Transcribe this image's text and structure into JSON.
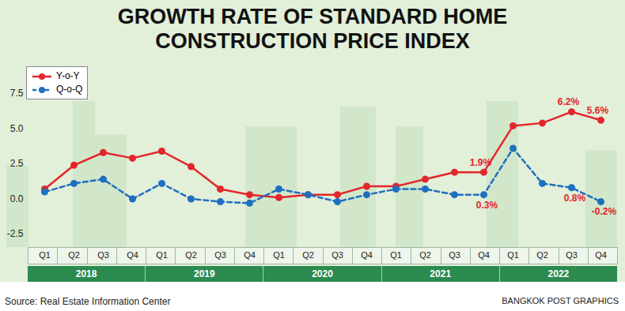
{
  "chart_data": {
    "type": "line",
    "title": "GROWTH RATE OF STANDARD HOME CONSTRUCTION PRICE INDEX",
    "source": "Source: Real Estate Information Center",
    "credit": "BANGKOK POST GRAPHICS",
    "categories": [
      "Q1",
      "Q2",
      "Q3",
      "Q4",
      "Q1",
      "Q2",
      "Q3",
      "Q4",
      "Q1",
      "Q2",
      "Q3",
      "Q4",
      "Q1",
      "Q2",
      "Q3",
      "Q4",
      "Q1",
      "Q2",
      "Q3",
      "Q4"
    ],
    "years": [
      "2018",
      "2019",
      "2020",
      "2021",
      "2022"
    ],
    "series": [
      {
        "name": "Y-o-Y",
        "color": "#e3262b",
        "marker": "circle",
        "line_style": "solid",
        "values": [
          0.7,
          2.4,
          3.3,
          2.9,
          3.4,
          2.3,
          0.7,
          0.3,
          0.1,
          0.3,
          0.3,
          0.9,
          0.9,
          1.4,
          1.9,
          1.9,
          5.2,
          5.4,
          6.2,
          5.6
        ],
        "value_labels": [
          null,
          null,
          null,
          null,
          null,
          null,
          null,
          null,
          null,
          null,
          null,
          null,
          null,
          null,
          null,
          "1.9%",
          null,
          null,
          "6.2%",
          "5.6%"
        ]
      },
      {
        "name": "Q-o-Q",
        "color": "#1f6fc0",
        "marker": "circle",
        "line_style": "dashed",
        "values": [
          0.5,
          1.1,
          1.4,
          0.0,
          1.1,
          0.0,
          -0.2,
          -0.3,
          0.7,
          0.3,
          -0.2,
          0.3,
          0.7,
          0.7,
          0.3,
          0.3,
          3.6,
          1.1,
          0.8,
          -0.2
        ],
        "value_labels": [
          null,
          null,
          null,
          null,
          null,
          null,
          null,
          null,
          null,
          null,
          null,
          null,
          null,
          null,
          null,
          "0.3%",
          null,
          null,
          "0.8%",
          "-0.2%"
        ]
      }
    ],
    "ylim": [
      -2.5,
      7.5
    ],
    "yticks": [
      -2.5,
      {
        "value": 0,
        "label": "0.0"
      },
      2.5,
      {
        "value": 5,
        "label": "5.0"
      },
      {
        "value": 7.5,
        "label": "7.5"
      }
    ],
    "grid": false,
    "legend": "top-left",
    "data_labels": true
  }
}
